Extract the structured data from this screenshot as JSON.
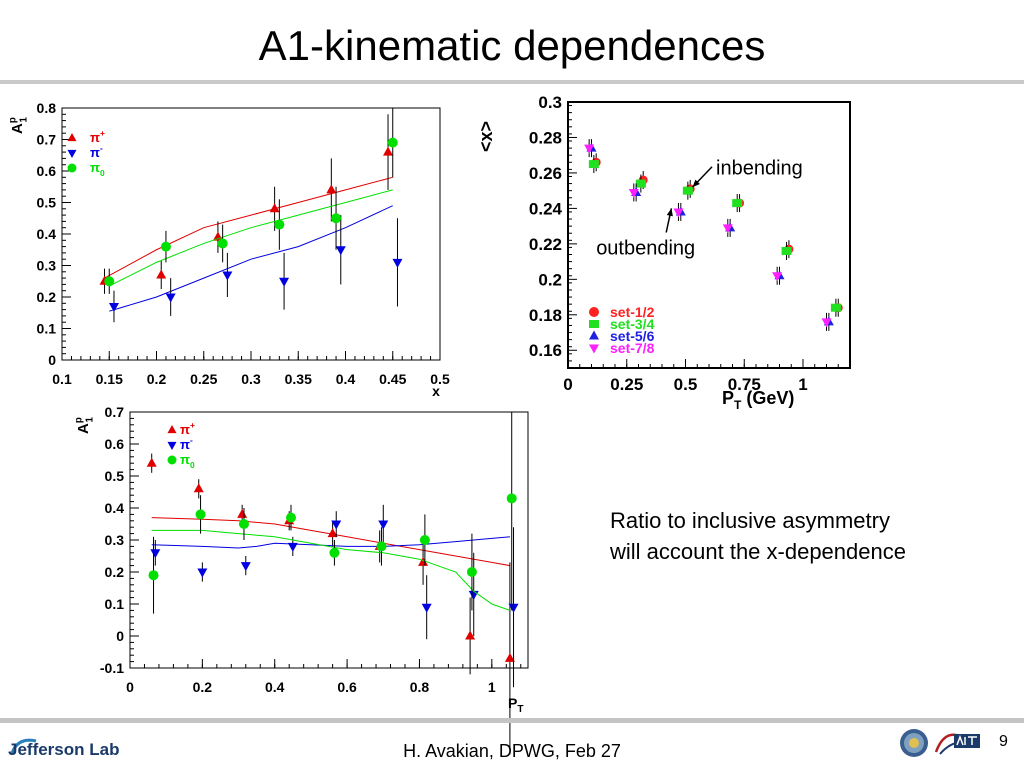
{
  "title": "A1-kinematic dependences",
  "note": {
    "line1": "Ratio to inclusive asymmetry",
    "line2": "will account the x-dependence"
  },
  "footer": {
    "text": "H. Avakian, DPWG, Feb 27",
    "page": "9",
    "logo_text": "Jefferson Lab"
  },
  "colors": {
    "pi_plus": "#e00000",
    "pi_minus": "#0000e0",
    "pi_zero": "#00e000",
    "set12": "#ff2020",
    "set34": "#20e020",
    "set56": "#2020e0",
    "set78": "#ff20ff"
  },
  "chart_data": [
    {
      "type": "scatter",
      "name": "A1 vs x",
      "xlabel": "x",
      "ylabel": "A",
      "ylabel_sub": "1",
      "ylabel_sup": "p",
      "xlim": [
        0.1,
        0.5
      ],
      "ylim": [
        0,
        0.8
      ],
      "xticks": [
        "0.1",
        "0.15",
        "0.2",
        "0.25",
        "0.3",
        "0.35",
        "0.4",
        "0.45",
        "0.5"
      ],
      "yticks": [
        "0",
        "0.1",
        "0.2",
        "0.3",
        "0.4",
        "0.5",
        "0.6",
        "0.7",
        "0.8"
      ],
      "legend": {
        "position": "top-left",
        "entries": [
          {
            "base": "π",
            "sup": "+",
            "sub": ""
          },
          {
            "base": "π",
            "sup": "-",
            "sub": ""
          },
          {
            "base": "π",
            "sup": "",
            "sub": "0"
          }
        ]
      },
      "series": [
        {
          "marker": "triangle-up",
          "color": "#e00000",
          "x": [
            0.145,
            0.205,
            0.265,
            0.325,
            0.385,
            0.445
          ],
          "y": [
            0.25,
            0.27,
            0.39,
            0.48,
            0.54,
            0.66
          ],
          "err": [
            0.04,
            0.045,
            0.05,
            0.07,
            0.1,
            0.12
          ],
          "fit": [
            [
              0.145,
              0.26
            ],
            [
              0.2,
              0.35
            ],
            [
              0.25,
              0.42
            ],
            [
              0.3,
              0.46
            ],
            [
              0.35,
              0.5
            ],
            [
              0.4,
              0.54
            ],
            [
              0.45,
              0.58
            ]
          ]
        },
        {
          "marker": "triangle-down",
          "color": "#0000e0",
          "x": [
            0.155,
            0.215,
            0.275,
            0.335,
            0.395,
            0.455
          ],
          "y": [
            0.17,
            0.2,
            0.27,
            0.25,
            0.35,
            0.31
          ],
          "err": [
            0.05,
            0.06,
            0.07,
            0.09,
            0.11,
            0.14
          ],
          "fit": [
            [
              0.15,
              0.155
            ],
            [
              0.2,
              0.2
            ],
            [
              0.25,
              0.26
            ],
            [
              0.3,
              0.32
            ],
            [
              0.35,
              0.36
            ],
            [
              0.4,
              0.42
            ],
            [
              0.45,
              0.49
            ]
          ]
        },
        {
          "marker": "circle",
          "color": "#00e000",
          "x": [
            0.15,
            0.21,
            0.27,
            0.33,
            0.39,
            0.45
          ],
          "y": [
            0.25,
            0.36,
            0.37,
            0.43,
            0.45,
            0.69
          ],
          "err": [
            0.04,
            0.05,
            0.06,
            0.08,
            0.1,
            0.11
          ],
          "fit": [
            [
              0.15,
              0.235
            ],
            [
              0.2,
              0.31
            ],
            [
              0.25,
              0.37
            ],
            [
              0.3,
              0.42
            ],
            [
              0.35,
              0.46
            ],
            [
              0.4,
              0.5
            ],
            [
              0.45,
              0.54
            ]
          ]
        }
      ]
    },
    {
      "type": "scatter",
      "name": "<x> vs PT",
      "xlabel": "P",
      "xlabel_sub": "T",
      "xlabel_tail": " (GeV)",
      "ylabel": "<x>",
      "xlim": [
        0,
        1.2
      ],
      "ylim": [
        0.15,
        0.3
      ],
      "xticks": [
        "0",
        "0.25",
        "0.5",
        "0.75",
        "1"
      ],
      "xtick_values": [
        0,
        0.25,
        0.5,
        0.75,
        1
      ],
      "yticks": [
        "0.16",
        "0.18",
        "0.2",
        "0.22",
        "0.24",
        "0.26",
        "0.28",
        "0.3"
      ],
      "ytick_values": [
        0.16,
        0.18,
        0.2,
        0.22,
        0.24,
        0.26,
        0.28,
        0.3
      ],
      "annotations": [
        {
          "text": "inbending",
          "x": 0.63,
          "y": 0.259,
          "arrow_to": [
            0.53,
            0.252
          ]
        },
        {
          "text": "outbending",
          "x": 0.12,
          "y": 0.214,
          "arrow_to": [
            0.44,
            0.24
          ]
        }
      ],
      "legend": {
        "position": "bottom-left",
        "entries": [
          "set-1/2",
          "set-3/4",
          "set-5/6",
          "set-7/8"
        ]
      },
      "series": [
        {
          "name": "set-1/2",
          "marker": "circle",
          "color": "#ff2020",
          "x": [
            0.12,
            0.32,
            0.52,
            0.73,
            0.94,
            1.15
          ],
          "y": [
            0.266,
            0.256,
            0.251,
            0.243,
            0.217,
            0.184
          ]
        },
        {
          "name": "set-3/4",
          "marker": "square",
          "color": "#20e020",
          "x": [
            0.11,
            0.31,
            0.51,
            0.72,
            0.93,
            1.14
          ],
          "y": [
            0.265,
            0.254,
            0.25,
            0.243,
            0.216,
            0.184
          ]
        },
        {
          "name": "set-5/6",
          "marker": "triangle-up",
          "color": "#2020e0",
          "x": [
            0.1,
            0.29,
            0.48,
            0.69,
            0.9,
            1.11
          ],
          "y": [
            0.274,
            0.249,
            0.238,
            0.229,
            0.202,
            0.176
          ]
        },
        {
          "name": "set-7/8",
          "marker": "triangle-down",
          "color": "#ff20ff",
          "x": [
            0.09,
            0.28,
            0.47,
            0.68,
            0.89,
            1.1
          ],
          "y": [
            0.274,
            0.249,
            0.238,
            0.229,
            0.202,
            0.176
          ]
        }
      ]
    },
    {
      "type": "scatter",
      "name": "A1 vs PT",
      "xlabel": "P",
      "xlabel_sub": "T",
      "ylabel": "A",
      "ylabel_sub": "1",
      "ylabel_sup": "p",
      "xlim": [
        0,
        1.1
      ],
      "ylim": [
        -0.1,
        0.7
      ],
      "xticks": [
        "0",
        "0.2",
        "0.4",
        "0.6",
        "0.8",
        "1"
      ],
      "xtick_values": [
        0,
        0.2,
        0.4,
        0.6,
        0.8,
        1
      ],
      "yticks": [
        "-0.1",
        "0",
        "0.1",
        "0.2",
        "0.3",
        "0.4",
        "0.5",
        "0.6",
        "0.7"
      ],
      "ytick_values": [
        -0.1,
        0,
        0.1,
        0.2,
        0.3,
        0.4,
        0.5,
        0.6,
        0.7
      ],
      "legend": {
        "position": "top-left",
        "entries": [
          {
            "base": "π",
            "sup": "+",
            "sub": ""
          },
          {
            "base": "π",
            "sup": "-",
            "sub": ""
          },
          {
            "base": "π",
            "sup": "",
            "sub": "0"
          }
        ]
      },
      "series": [
        {
          "marker": "triangle-up",
          "color": "#e00000",
          "x": [
            0.06,
            0.19,
            0.31,
            0.44,
            0.56,
            0.69,
            0.81,
            0.94,
            1.05
          ],
          "y": [
            0.54,
            0.46,
            0.38,
            0.36,
            0.32,
            0.28,
            0.23,
            0.0,
            -0.07
          ],
          "err": [
            0.03,
            0.03,
            0.03,
            0.03,
            0.04,
            0.05,
            0.07,
            0.12,
            0.3
          ],
          "fit": [
            [
              0.06,
              0.37
            ],
            [
              0.2,
              0.365
            ],
            [
              0.3,
              0.36
            ],
            [
              0.4,
              0.35
            ],
            [
              0.5,
              0.33
            ],
            [
              0.6,
              0.31
            ],
            [
              0.7,
              0.29
            ],
            [
              0.8,
              0.27
            ],
            [
              0.9,
              0.25
            ],
            [
              1.0,
              0.23
            ],
            [
              1.05,
              0.22
            ]
          ]
        },
        {
          "marker": "triangle-down",
          "color": "#0000e0",
          "x": [
            0.07,
            0.2,
            0.32,
            0.45,
            0.57,
            0.7,
            0.82,
            0.95,
            1.06
          ],
          "y": [
            0.26,
            0.2,
            0.22,
            0.28,
            0.35,
            0.35,
            0.09,
            0.13,
            0.09
          ],
          "err": [
            0.04,
            0.03,
            0.03,
            0.03,
            0.04,
            0.06,
            0.1,
            0.13,
            0.25
          ],
          "fit": [
            [
              0.06,
              0.285
            ],
            [
              0.2,
              0.28
            ],
            [
              0.3,
              0.275
            ],
            [
              0.35,
              0.28
            ],
            [
              0.4,
              0.29
            ],
            [
              0.5,
              0.285
            ],
            [
              0.6,
              0.28
            ],
            [
              0.7,
              0.28
            ],
            [
              0.8,
              0.285
            ],
            [
              0.9,
              0.295
            ],
            [
              1.0,
              0.305
            ],
            [
              1.05,
              0.31
            ]
          ]
        },
        {
          "marker": "circle",
          "color": "#00e000",
          "x": [
            0.065,
            0.195,
            0.315,
            0.445,
            0.565,
            0.695,
            0.815,
            0.945,
            1.055
          ],
          "y": [
            0.19,
            0.38,
            0.35,
            0.37,
            0.26,
            0.28,
            0.3,
            0.2,
            0.43
          ],
          "err": [
            0.12,
            0.06,
            0.05,
            0.04,
            0.04,
            0.06,
            0.08,
            0.12,
            0.35
          ],
          "fit": [
            [
              0.06,
              0.33
            ],
            [
              0.2,
              0.33
            ],
            [
              0.3,
              0.32
            ],
            [
              0.4,
              0.31
            ],
            [
              0.5,
              0.29
            ],
            [
              0.6,
              0.27
            ],
            [
              0.7,
              0.26
            ],
            [
              0.8,
              0.24
            ],
            [
              0.9,
              0.2
            ],
            [
              0.95,
              0.14
            ],
            [
              1.0,
              0.1
            ],
            [
              1.05,
              0.08
            ]
          ]
        }
      ]
    }
  ]
}
